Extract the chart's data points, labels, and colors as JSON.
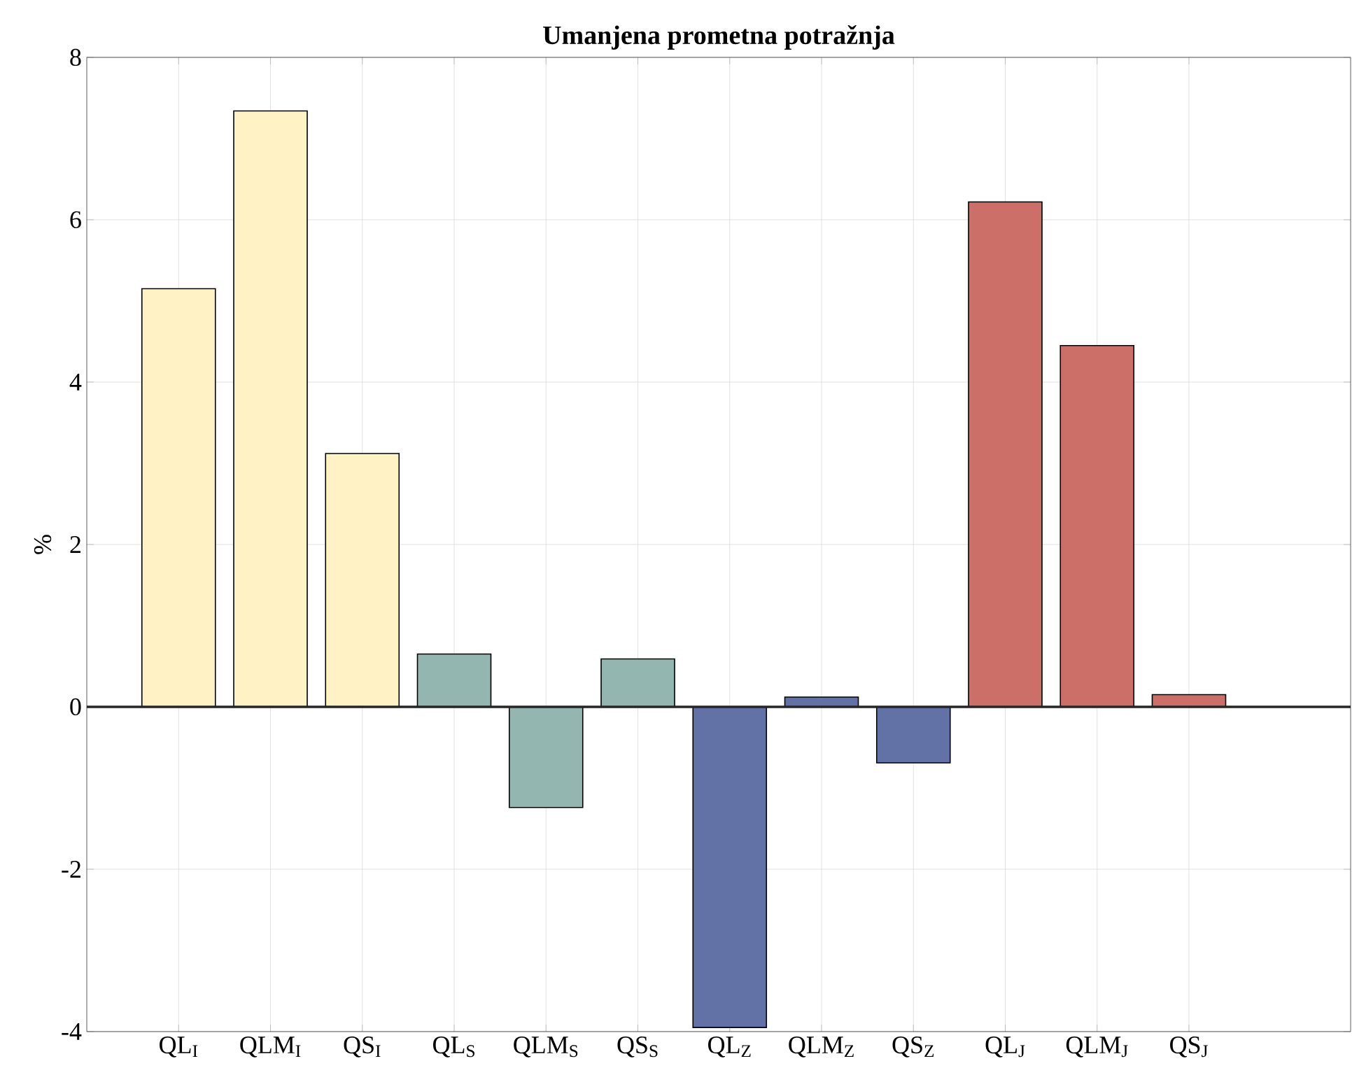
{
  "chart_data": {
    "type": "bar",
    "title": "Umanjena prometna potražnja",
    "ylabel": "%",
    "categories": [
      "QL$_{I}$",
      "QLM$_{I}$",
      "QS$_{I}$",
      "QL$_{S}$",
      "QLM$_{S}$",
      "QS$_{S}$",
      "QL$_{Z}$",
      "QLM$_{Z}$",
      "QS$_{Z}$",
      "QL$_{J}$",
      "QLM$_{J}$",
      "QS$_{J}$"
    ],
    "values": [
      5.15,
      7.34,
      3.12,
      0.65,
      -1.24,
      0.59,
      -3.95,
      0.12,
      -0.69,
      6.22,
      4.45,
      0.15
    ],
    "colors": [
      "#fff2c4",
      "#fff2c4",
      "#fff2c4",
      "#94b6b0",
      "#94b6b0",
      "#94b6b0",
      "#6272a6",
      "#6272a6",
      "#6272a6",
      "#cc6f69",
      "#cc6f69",
      "#cc6f69"
    ],
    "ylim": [
      -4,
      8
    ],
    "yticks": [
      -4,
      -2,
      0,
      2,
      4,
      6,
      8
    ],
    "grid": true,
    "ref_lines": [
      {
        "axis": "y",
        "value": 0,
        "color": "#262626"
      }
    ]
  }
}
